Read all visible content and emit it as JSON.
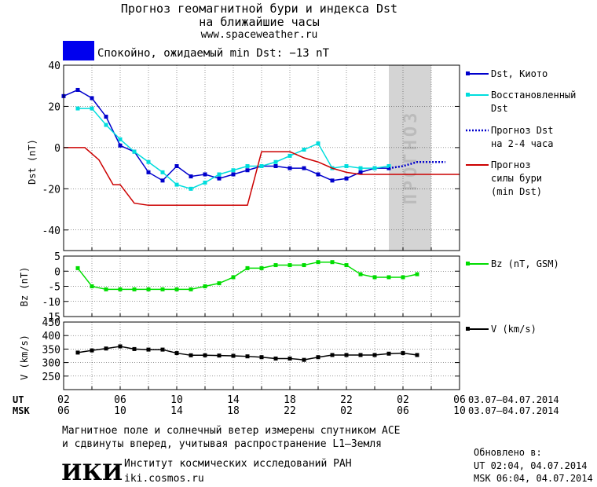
{
  "header": {
    "title_line1": "Прогноз геомагнитной бури и индекса Dst",
    "title_line2": "на ближайшие часы",
    "site": "www.spaceweather.ru",
    "status_text": "Спокойно, ожидаемый min Dst: −13 nT",
    "status_color": "#0000ee"
  },
  "chart_data": [
    {
      "type": "line",
      "ylabel": "Dst (nT)",
      "ylim": [
        -50,
        40
      ],
      "yticks": [
        40,
        20,
        0,
        -20,
        -40
      ],
      "xlim": [
        0,
        28
      ],
      "forecast_band": {
        "x": [
          23,
          26
        ],
        "label": "ПРОГНОЗ"
      },
      "series": [
        {
          "name": "Dst, Киото",
          "color": "#0000cc",
          "x": [
            0,
            1,
            2,
            3,
            4,
            5,
            6,
            7,
            8,
            9,
            10,
            11,
            12,
            13,
            14,
            15,
            16,
            17,
            18,
            19,
            20,
            21,
            22,
            23
          ],
          "values": [
            25,
            28,
            24,
            15,
            1,
            -2,
            -12,
            -16,
            -9,
            -14,
            -13,
            -15,
            -13,
            -11,
            -9,
            -9,
            -10,
            -10,
            -13,
            -16,
            -15,
            -12,
            -10,
            -10
          ]
        },
        {
          "name": "Восстановленный Dst",
          "color": "#00dddd",
          "x": [
            1,
            2,
            3,
            4,
            5,
            6,
            7,
            8,
            9,
            10,
            11,
            12,
            13,
            14,
            15,
            16,
            17,
            18,
            19,
            20,
            21,
            22,
            23
          ],
          "values": [
            19,
            19,
            11,
            4,
            -2,
            -7,
            -12,
            -18,
            -20,
            -17,
            -13,
            -11,
            -9,
            -9,
            -7,
            -4,
            -1,
            2,
            -10,
            -9,
            -10,
            -10,
            -9
          ]
        },
        {
          "name": "Прогноз Dst на 2-4 часа",
          "color": "#0000cc",
          "dash": true,
          "x": [
            23,
            24,
            25,
            26,
            27
          ],
          "values": [
            -10,
            -9,
            -7,
            -7,
            -7
          ]
        },
        {
          "name": "Прогноз силы бури (min Dst)",
          "color": "#cc0000",
          "x": [
            0,
            1,
            1.5,
            2.5,
            3.5,
            4,
            5,
            6,
            7,
            8,
            9,
            10,
            11,
            12,
            13,
            14,
            15,
            16,
            17,
            18,
            19,
            20,
            21,
            22,
            23,
            24,
            25,
            26,
            27,
            28
          ],
          "values": [
            0,
            0,
            0,
            -6,
            -18,
            -18,
            -27,
            -28,
            -28,
            -28,
            -28,
            -28,
            -28,
            -28,
            -28,
            -2,
            -2,
            -2,
            -5,
            -7,
            -10,
            -12,
            -13,
            -13,
            -13,
            -13,
            -13,
            -13,
            -13,
            -13
          ]
        }
      ],
      "legend_labels": {
        "dst": [
          "Dst, Киото"
        ],
        "rec": [
          "Восстановленный",
          "Dst"
        ],
        "fc": [
          "Прогноз Dst",
          "на 2-4 часа"
        ],
        "min": [
          "Прогноз",
          "силы бури",
          "(min Dst)"
        ]
      }
    },
    {
      "type": "line",
      "ylabel": "Bz (nT)",
      "ylim": [
        -15,
        5
      ],
      "yticks": [
        5,
        0,
        -5,
        -10,
        -15
      ],
      "series": [
        {
          "name": "Bz (nT, GSM)",
          "color": "#00dd00",
          "x": [
            1,
            2,
            3,
            4,
            5,
            6,
            7,
            8,
            9,
            10,
            11,
            12,
            13,
            14,
            15,
            16,
            17,
            18,
            19,
            20,
            21,
            22,
            23,
            24,
            25
          ],
          "values": [
            1,
            -5,
            -6,
            -6,
            -6,
            -6,
            -6,
            -6,
            -6,
            -5,
            -4,
            -2,
            1,
            1,
            2,
            2,
            2,
            3,
            3,
            2,
            -1,
            -2,
            -2,
            -2,
            -1
          ]
        }
      ]
    },
    {
      "type": "line",
      "ylabel": "V (km/s)",
      "ylim": [
        200,
        450
      ],
      "yticks": [
        450,
        400,
        350,
        300,
        250
      ],
      "series": [
        {
          "name": "V (km/s)",
          "color": "#000000",
          "x": [
            1,
            2,
            3,
            4,
            5,
            6,
            7,
            8,
            9,
            10,
            11,
            12,
            13,
            14,
            15,
            16,
            17,
            18,
            19,
            20,
            21,
            22,
            23,
            24,
            25
          ],
          "values": [
            337,
            345,
            352,
            360,
            350,
            348,
            348,
            335,
            327,
            327,
            326,
            325,
            323,
            320,
            315,
            315,
            310,
            320,
            328,
            328,
            328,
            328,
            333,
            335,
            328
          ]
        }
      ]
    }
  ],
  "xaxis": {
    "ut_label": "UT",
    "msk_label": "MSK",
    "ut_ticks": [
      "02",
      "06",
      "10",
      "14",
      "18",
      "22",
      "02",
      "06"
    ],
    "msk_ticks": [
      "06",
      "10",
      "14",
      "18",
      "22",
      "02",
      "06",
      "10"
    ],
    "date_range": "03.07–04.07.2014"
  },
  "footer": {
    "note_line1": "Магнитное поле и солнечный ветер измерены спутником ACE",
    "note_line2": "и сдвинуты вперед, учитывая распространение L1–Земля",
    "institute": "Институт космических исследований РАН",
    "institute_site": "iki.cosmos.ru",
    "logo_text": "ИКИ",
    "updated_label": "Обновлено в:",
    "updated_ut": "UT  02:04, 04.07.2014",
    "updated_msk": "MSK 06:04, 04.07.2014"
  }
}
